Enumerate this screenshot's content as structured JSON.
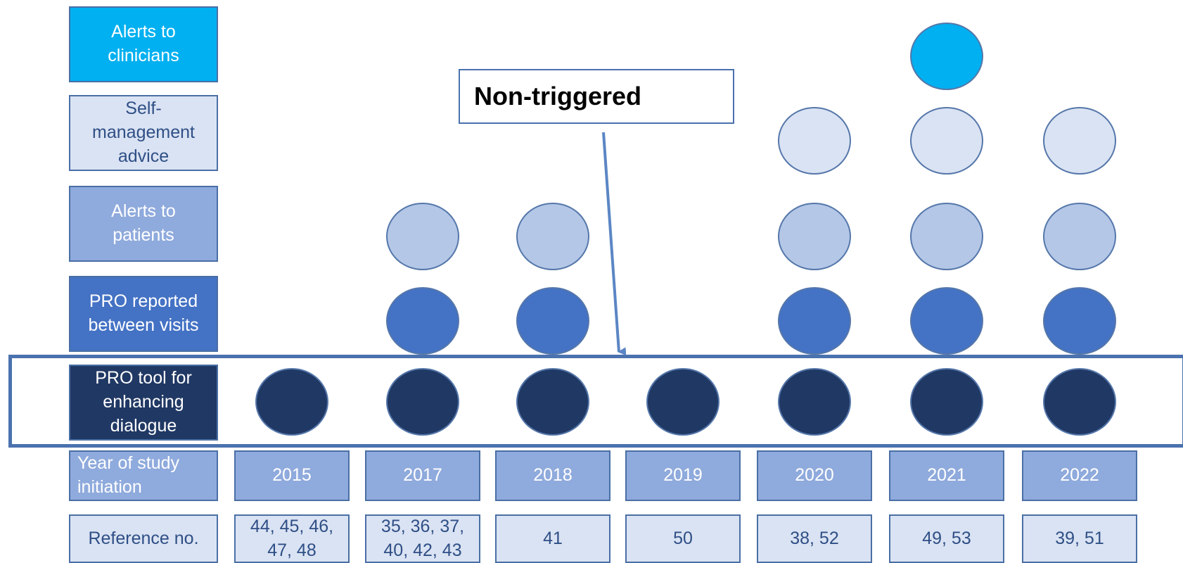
{
  "categories": [
    {
      "label": "Alerts to\nclinicians",
      "color": "#00b0f0"
    },
    {
      "label": "Self-\nmanagement\nadvice",
      "color": "#dae3f3"
    },
    {
      "label": "Alerts to\npatients",
      "color": "#8faadc"
    },
    {
      "label": "PRO reported\nbetween visits",
      "color": "#4472c4"
    },
    {
      "label": "PRO tool for\nenhancing\ndialogue",
      "color": "#203864"
    }
  ],
  "year_row_label": "Year of study\ninitiation",
  "reference_row_label": "Reference no.",
  "years": [
    {
      "year": "2015",
      "refs": "44, 45, 46,\n47, 48",
      "features": [
        4
      ]
    },
    {
      "year": "2017",
      "refs": "35, 36, 37,\n40, 42, 43",
      "features": [
        2,
        3,
        4
      ]
    },
    {
      "year": "2018",
      "refs": "41",
      "features": [
        2,
        3,
        4
      ]
    },
    {
      "year": "2019",
      "refs": "50",
      "features": [
        4
      ]
    },
    {
      "year": "2020",
      "refs": "38, 52",
      "features": [
        1,
        2,
        3,
        4
      ]
    },
    {
      "year": "2021",
      "refs": "49, 53",
      "features": [
        0,
        1,
        2,
        3,
        4
      ]
    },
    {
      "year": "2022",
      "refs": "39, 51",
      "features": [
        1,
        2,
        3,
        4
      ]
    }
  ],
  "callout": {
    "text": "Non-triggered",
    "target_category": 4
  }
}
